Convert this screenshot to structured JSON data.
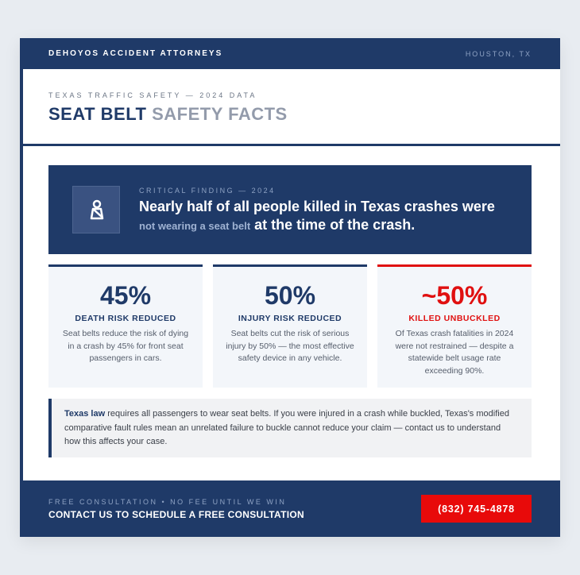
{
  "header": {
    "brand": "DEHOYOS ACCIDENT ATTORNEYS",
    "location": "HOUSTON, TX"
  },
  "title": {
    "kicker": "TEXAS TRAFFIC SAFETY — 2024 DATA",
    "main": "SEAT BELT",
    "accent": "SAFETY FACTS"
  },
  "finding": {
    "kicker": "CRITICAL FINDING — 2024",
    "line1": "Nearly half of all people killed in Texas crashes were",
    "highlight": "not wearing a seat belt",
    "line2": "at the time of the crash."
  },
  "stats": [
    {
      "value": "45%",
      "label": "DEATH RISK REDUCED",
      "text": "Seat belts reduce the risk of dying in a crash by 45% for front seat passengers in cars."
    },
    {
      "value": "50%",
      "label": "INJURY RISK REDUCED",
      "text": "Seat belts cut the risk of serious injury by 50% — the most effective safety device in any vehicle."
    },
    {
      "value": "~50%",
      "label": "KILLED UNBUCKLED",
      "text": "Of Texas crash fatalities in 2024 were not restrained — despite a statewide belt usage rate exceeding 90%."
    }
  ],
  "note": {
    "lead": "Texas law",
    "text": "requires all passengers to wear seat belts. If you were injured in a crash while buckled, Texas's modified comparative fault rules mean an unrelated failure to buckle cannot reduce your claim — contact us to understand how this affects your case."
  },
  "footer": {
    "kicker": "FREE CONSULTATION • NO FEE UNTIL WE WIN",
    "cta": "CONTACT US TO SCHEDULE A FREE CONSULTATION",
    "phone": "(832) 745-4878"
  }
}
